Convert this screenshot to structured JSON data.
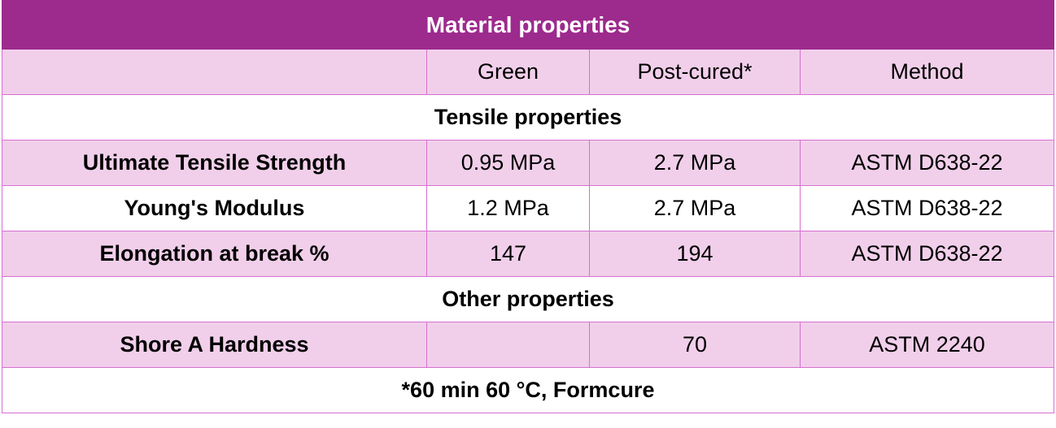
{
  "title": "Material properties",
  "header": {
    "blank": "",
    "green": "Green",
    "post_cured": "Post-cured*",
    "method": "Method"
  },
  "sections": {
    "tensile": "Tensile properties",
    "other": "Other properties"
  },
  "rows": [
    {
      "property": "Ultimate Tensile Strength",
      "green": "0.95 MPa",
      "post_cured": "2.7 MPa",
      "method": "ASTM D638-22"
    },
    {
      "property": "Young's Modulus",
      "green": "1.2 MPa",
      "post_cured": "2.7 MPa",
      "method": "ASTM D638-22"
    },
    {
      "property": "Elongation at break %",
      "green": "147",
      "post_cured": "194",
      "method": "ASTM D638-22"
    },
    {
      "property": "Shore A Hardness",
      "green": "",
      "post_cured": "70",
      "method": "ASTM 2240"
    }
  ],
  "footnote": "*60 min 60 °C, Formcure",
  "colors": {
    "header": "#9d2a8d",
    "row_pink": "#f1cfea",
    "border": "#d66fd0"
  }
}
